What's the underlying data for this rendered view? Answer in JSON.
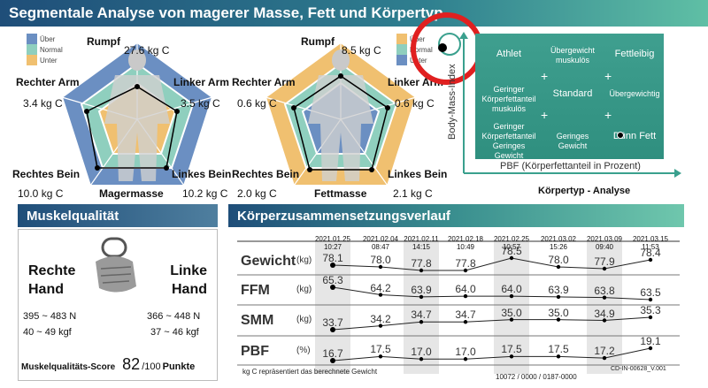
{
  "colors": {
    "brand_dark": "#1f4e79",
    "brand_teal": "#3aa08e",
    "under": "#6b8fc2",
    "normal": "#8fcfbe",
    "over": "#f0c070",
    "highlight": "#e02020"
  },
  "seg": {
    "title": "Segmentale Analyse von magerer Masse, Fett und Körpertyp",
    "legend": [
      "Über",
      "Normal",
      "Unter"
    ],
    "lean": {
      "trunk_label": "Rumpf",
      "trunk_value": "27.6  kg C",
      "right_arm_label": "Rechter Arm",
      "right_arm_value": "3.4  kg C",
      "left_arm_label": "Linker Arm",
      "left_arm_value": "3.5  kg C",
      "right_leg_label": "Rechtes Bein",
      "right_leg_value": "10.0  kg C",
      "left_leg_label": "Linkes Bein",
      "left_leg_value": "10.2  kg C",
      "center_label": "Magermasse"
    },
    "fat": {
      "trunk_label": "Rumpf",
      "trunk_value": "8.5 kg C",
      "right_arm_label": "Rechter Arm",
      "right_arm_value": "0.6  kg C",
      "left_arm_label": "Linker Arm",
      "left_arm_value": "0.6  kg C",
      "right_leg_label": "Rechtes Bein",
      "right_leg_value": "2.0  kg C",
      "left_leg_label": "Linkes Bein",
      "left_leg_value": "2.1  kg C",
      "center_label": "Fettmasse"
    }
  },
  "bodytype": {
    "y_axis": "Body-Mass-Index",
    "x_axis": "PBF (Körperfettanteil in Prozent)",
    "caption": "Körpertyp - Analyse",
    "cells": [
      "Athlet",
      "Übergewicht muskulös",
      "Fettleibig",
      "Geringer Körperfettanteil muskulös",
      "Standard",
      "Übergewichtig",
      "Geringer Körperfettanteil Geringes Gewicht",
      "Geringes Gewicht",
      "Dünn Fett"
    ]
  },
  "muscle": {
    "title": "Muskelqualität",
    "right_hand": "Rechte Hand",
    "left_hand": "Linke Hand",
    "right_n": "395 ~ 483 N",
    "right_kgf": "40 ~ 49 kgf",
    "left_n": "366 ~ 448 N",
    "left_kgf": "37 ~ 46 kgf",
    "score_label": "Muskelqualitäts-Score",
    "score_value": "82",
    "score_max": "/100",
    "score_unit": "Punkte"
  },
  "history": {
    "title": "Körperzusammensetzungsverlauf",
    "dates": [
      [
        "2021.01.25",
        "10:27"
      ],
      [
        "2021.02.04",
        "08:47"
      ],
      [
        "2021.02.11",
        "14:15"
      ],
      [
        "2021.02.18",
        "10:49"
      ],
      [
        "2021.02.25",
        "10:57"
      ],
      [
        "2021.03.02",
        "15:26"
      ],
      [
        "2021.03.09",
        "09:40"
      ],
      [
        "2021.03.15",
        "11:53"
      ]
    ],
    "rows": [
      {
        "label": "Gewicht",
        "unit": "(kg)",
        "values": [
          "78.1",
          "78.0",
          "77.8",
          "77.8",
          "78.5",
          "78.0",
          "77.9",
          "78.4"
        ]
      },
      {
        "label": "FFM",
        "unit": "(kg)",
        "values": [
          "65.3",
          "64.2",
          "63.9",
          "64.0",
          "64.0",
          "63.9",
          "63.8",
          "63.5"
        ]
      },
      {
        "label": "SMM",
        "unit": "(kg)",
        "values": [
          "33.7",
          "34.2",
          "34.7",
          "34.7",
          "35.0",
          "35.0",
          "34.9",
          "35.3"
        ]
      },
      {
        "label": "PBF",
        "unit": "(%)",
        "values": [
          "16.7",
          "17.5",
          "17.0",
          "17.0",
          "17.5",
          "17.5",
          "17.2",
          "19.1"
        ]
      }
    ],
    "footnote": "kg C repräsentiert das berechnete Gewicht",
    "code": "10072 / 0000 / 0187-0000",
    "version": "CD-IN-00628_V.001"
  }
}
